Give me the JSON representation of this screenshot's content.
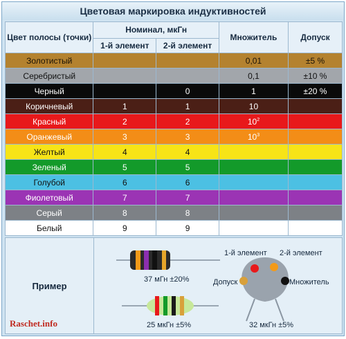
{
  "title": "Цветовая маркировка индуктивностей",
  "headers": {
    "color": "Цвет полосы (точки)",
    "nominal": "Номинал, мкГн",
    "first": "1-й элемент",
    "second": "2-й элемент",
    "multiplier": "Множитель",
    "tolerance": "Допуск"
  },
  "rows": [
    {
      "name": "Золотистый",
      "bg": "#b4822f",
      "fg": "#1a1206",
      "a": "",
      "b": "",
      "m": "0,01",
      "msup": "",
      "t": "±5 %"
    },
    {
      "name": "Серебристый",
      "bg": "#a2a6ab",
      "fg": "#111111",
      "a": "",
      "b": "",
      "m": "0,1",
      "msup": "",
      "t": "±10 %"
    },
    {
      "name": "Черный",
      "bg": "#0a0a0a",
      "fg": "#ffffff",
      "a": "",
      "b": "0",
      "m": "1",
      "msup": "",
      "t": "±20 %"
    },
    {
      "name": "Коричневый",
      "bg": "#4b1f16",
      "fg": "#ffffff",
      "a": "1",
      "b": "1",
      "m": "10",
      "msup": "",
      "t": ""
    },
    {
      "name": "Красный",
      "bg": "#e8191b",
      "fg": "#ffffff",
      "a": "2",
      "b": "2",
      "m": "10",
      "msup": "2",
      "t": ""
    },
    {
      "name": "Оранжевый",
      "bg": "#f38d17",
      "fg": "#ffffff",
      "a": "3",
      "b": "3",
      "m": "10",
      "msup": "3",
      "t": ""
    },
    {
      "name": "Желтый",
      "bg": "#f7e417",
      "fg": "#111111",
      "a": "4",
      "b": "4",
      "m": "",
      "msup": "",
      "t": ""
    },
    {
      "name": "Зеленый",
      "bg": "#139a2a",
      "fg": "#ffffff",
      "a": "5",
      "b": "5",
      "m": "",
      "msup": "",
      "t": ""
    },
    {
      "name": "Голубой",
      "bg": "#4cc0e3",
      "fg": "#111111",
      "a": "6",
      "b": "6",
      "m": "",
      "msup": "",
      "t": ""
    },
    {
      "name": "Фиолетовый",
      "bg": "#9b34b4",
      "fg": "#ffffff",
      "a": "7",
      "b": "7",
      "m": "",
      "msup": "",
      "t": ""
    },
    {
      "name": "Серый",
      "bg": "#7d8186",
      "fg": "#ffffff",
      "a": "8",
      "b": "8",
      "m": "",
      "msup": "",
      "t": ""
    },
    {
      "name": "Белый",
      "bg": "#ffffff",
      "fg": "#111111",
      "a": "9",
      "b": "9",
      "m": "",
      "msup": "",
      "t": ""
    }
  ],
  "example": {
    "label": "Пример",
    "cap1": "37 мГн ±20%",
    "cap2": "25 мкГн ±5%",
    "cap3": "32 мкГн ±5%",
    "lbl_first": "1-й элемент",
    "lbl_second": "2-й элемент",
    "lbl_tol": "Допуск",
    "lbl_mult": "Множитель"
  },
  "watermark": "Raschet.info"
}
